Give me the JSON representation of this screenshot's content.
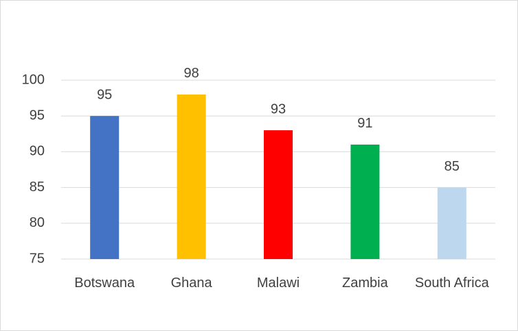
{
  "chart_data": {
    "type": "bar",
    "categories": [
      "Botswana",
      "Ghana",
      "Malawi",
      "Zambia",
      "South Africa"
    ],
    "values": [
      95,
      98,
      93,
      91,
      85
    ],
    "colors": [
      "#4472c4",
      "#ffc000",
      "#ff0000",
      "#00b050",
      "#bdd7ee"
    ],
    "ylim": [
      75,
      100
    ],
    "yticks": [
      75,
      80,
      85,
      90,
      95,
      100
    ],
    "grid": true
  }
}
